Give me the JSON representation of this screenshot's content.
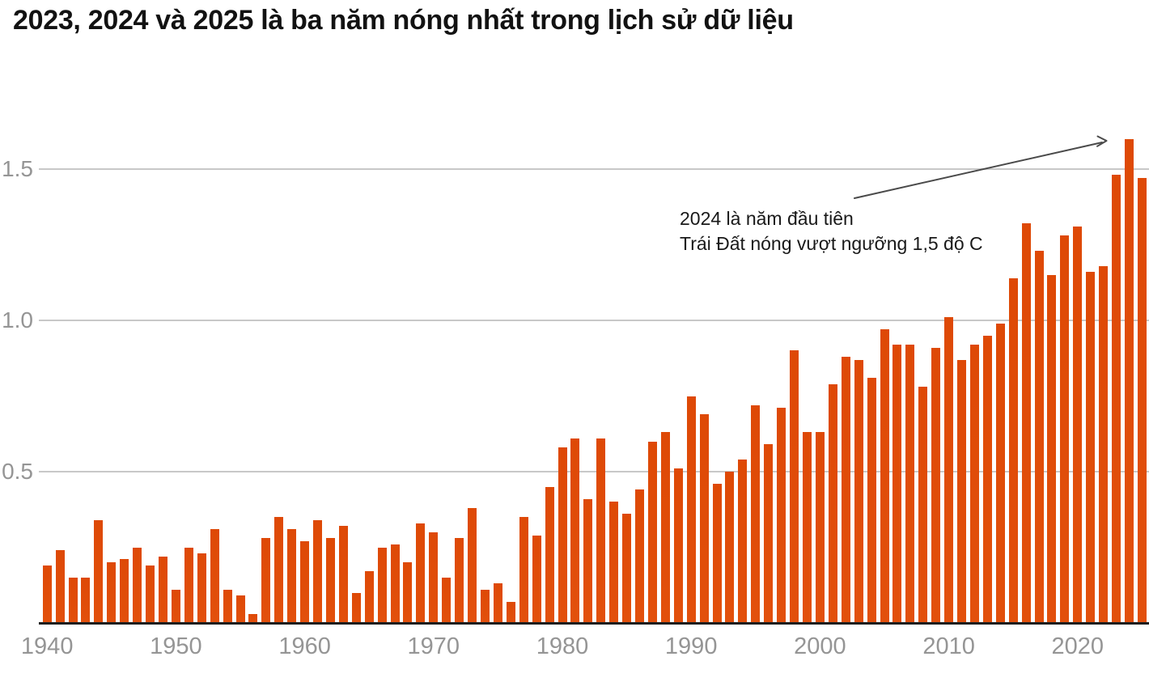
{
  "title": "2023, 2024 và 2025 là ba năm nóng nhất trong lịch sử dữ liệu",
  "annotation": {
    "line1": "2024 là năm đầu tiên",
    "line2": "Trái Đất nóng vượt ngưỡng 1,5 độ C",
    "points_to_year": 2024
  },
  "colors": {
    "bar": "#e2500c",
    "grid": "#c8c8c8",
    "axis": "#1e1e1e",
    "tick_label": "#959595",
    "title": "#121212",
    "arrow": "#4a4a4a"
  },
  "chart_data": {
    "type": "bar",
    "title": "2023, 2024 và 2025 là ba năm nóng nhất trong lịch sử dữ liệu",
    "x": [
      1940,
      1941,
      1942,
      1943,
      1944,
      1945,
      1946,
      1947,
      1948,
      1949,
      1950,
      1951,
      1952,
      1953,
      1954,
      1955,
      1956,
      1957,
      1958,
      1959,
      1960,
      1961,
      1962,
      1963,
      1964,
      1965,
      1966,
      1967,
      1968,
      1969,
      1970,
      1971,
      1972,
      1973,
      1974,
      1975,
      1976,
      1977,
      1978,
      1979,
      1980,
      1981,
      1982,
      1983,
      1984,
      1985,
      1986,
      1987,
      1988,
      1989,
      1990,
      1991,
      1992,
      1993,
      1994,
      1995,
      1996,
      1997,
      1998,
      1999,
      2000,
      2001,
      2002,
      2003,
      2004,
      2005,
      2006,
      2007,
      2008,
      2009,
      2010,
      2011,
      2012,
      2013,
      2014,
      2015,
      2016,
      2017,
      2018,
      2019,
      2020,
      2021,
      2022,
      2023,
      2024,
      2025
    ],
    "values": [
      0.19,
      0.24,
      0.15,
      0.15,
      0.34,
      0.2,
      0.21,
      0.25,
      0.19,
      0.22,
      0.11,
      0.25,
      0.23,
      0.31,
      0.11,
      0.09,
      0.03,
      0.28,
      0.35,
      0.31,
      0.27,
      0.34,
      0.28,
      0.32,
      0.1,
      0.17,
      0.25,
      0.26,
      0.2,
      0.33,
      0.3,
      0.15,
      0.28,
      0.38,
      0.11,
      0.13,
      0.07,
      0.35,
      0.29,
      0.45,
      0.58,
      0.61,
      0.41,
      0.61,
      0.4,
      0.36,
      0.44,
      0.6,
      0.63,
      0.51,
      0.75,
      0.69,
      0.46,
      0.5,
      0.54,
      0.72,
      0.59,
      0.71,
      0.9,
      0.63,
      0.63,
      0.79,
      0.88,
      0.87,
      0.81,
      0.97,
      0.92,
      0.92,
      0.78,
      0.91,
      1.01,
      0.87,
      0.92,
      0.95,
      0.99,
      1.14,
      1.32,
      1.23,
      1.15,
      1.28,
      1.31,
      1.16,
      1.18,
      1.48,
      1.6,
      1.47
    ],
    "xticks": [
      1940,
      1950,
      1960,
      1970,
      1980,
      1990,
      2000,
      2010,
      2020
    ],
    "yticks": [
      0.5,
      1.0,
      1.5
    ],
    "ytick_labels": [
      "0.5",
      "1.0",
      "1.5"
    ],
    "ylim": [
      0,
      1.66
    ],
    "xlabel": "",
    "ylabel": "",
    "grid": "horizontal",
    "legend": "none",
    "annotation_text": "2024 là năm đầu tiên Trái Đất nóng vượt ngưỡng 1,5 độ C"
  }
}
